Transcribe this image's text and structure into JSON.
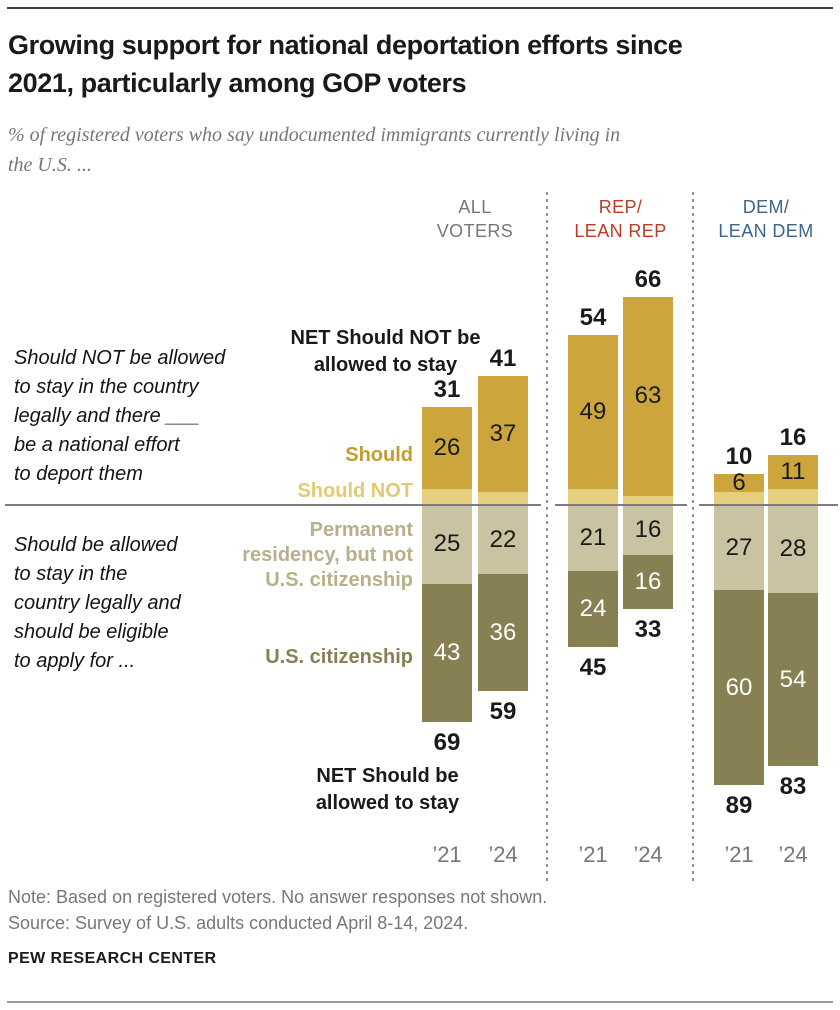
{
  "page": {
    "title_lines": [
      "Growing support for national deportation efforts since",
      "2021, particularly among GOP voters"
    ],
    "subtitle_lines": [
      "% of registered voters who say undocumented immigrants currently living in",
      "the U.S. ..."
    ],
    "note_lines": [
      "Note: Based on registered voters. No answer responses not shown.",
      "Source: Survey of U.S. adults conducted April 8-14, 2024."
    ],
    "brand": "PEW RESEARCH CENTER"
  },
  "annotations": {
    "top_left_lines": [
      "Should NOT be allowed",
      "to stay in the country",
      "legally and there ___",
      "be a national effort",
      "to deport them"
    ],
    "bottom_left_lines": [
      "Should be allowed",
      "to stay in the",
      "country legally and",
      "should be eligible",
      "to apply for ..."
    ],
    "net_not_lines": [
      "NET Should NOT be",
      "allowed to stay"
    ],
    "net_stay_lines": [
      "NET Should be",
      "allowed to stay"
    ],
    "legend": {
      "should": "Should",
      "should_not": "Should NOT",
      "perm_lines": [
        "Permanent",
        "residency, but not",
        "U.S. citizenship"
      ],
      "citizenship": "U.S. citizenship"
    }
  },
  "colors": {
    "gold_dark": "#CCA63C",
    "gold_light": "#E6CE7C",
    "olive_light": "#C9C3A2",
    "olive_dark": "#878053",
    "legend_gold": "#C39D30",
    "legend_gold_light": "#E4C973",
    "legend_olive_light": "#B7B08A",
    "legend_olive_dark": "#878053",
    "rep_red": "#BF3927",
    "dem_blue": "#3D658A",
    "neutral_gray": "#75787B",
    "text_dark": "#1A1A1A",
    "value_white": "#FFFFFF"
  },
  "chart_data": {
    "type": "bar",
    "variant": "diverging-stacked",
    "unit": "% of registered voters",
    "baseline_top_meaning": "NET Should NOT be allowed to stay (Should / Should NOT have national deportation effort)",
    "baseline_bottom_meaning": "NET Should be allowed to stay (Permanent residency / U.S. citizenship)",
    "categories": [
      "’21",
      "’24"
    ],
    "groups": [
      {
        "key": "all-voters",
        "header_lines": [
          "ALL",
          "VOTERS"
        ],
        "bars": [
          {
            "year": "’21",
            "net_should_not_stay": 31,
            "should": 26,
            "should_not": 5,
            "permanent_residency": 25,
            "us_citizenship": 43,
            "net_should_stay": 69
          },
          {
            "year": "’24",
            "net_should_not_stay": 41,
            "should": 37,
            "should_not": 4,
            "permanent_residency": 22,
            "us_citizenship": 36,
            "net_should_stay": 59
          }
        ]
      },
      {
        "key": "rep-lean-rep",
        "header_lines": [
          "REP/",
          "LEAN REP"
        ],
        "bars": [
          {
            "year": "’21",
            "net_should_not_stay": 54,
            "should": 49,
            "should_not": 5,
            "permanent_residency": 21,
            "us_citizenship": 24,
            "net_should_stay": 45
          },
          {
            "year": "’24",
            "net_should_not_stay": 66,
            "should": 63,
            "should_not": 3,
            "permanent_residency": 16,
            "us_citizenship": 16,
            "net_should_stay": 33
          }
        ]
      },
      {
        "key": "dem-lean-dem",
        "header_lines": [
          "DEM/",
          "LEAN DEM"
        ],
        "bars": [
          {
            "year": "’21",
            "net_should_not_stay": 10,
            "should": 6,
            "should_not": 4,
            "permanent_residency": 27,
            "us_citizenship": 60,
            "net_should_stay": 89
          },
          {
            "year": "’24",
            "net_should_not_stay": 16,
            "should": 11,
            "should_not": 5,
            "permanent_residency": 28,
            "us_citizenship": 54,
            "net_should_stay": 83
          }
        ]
      }
    ]
  }
}
